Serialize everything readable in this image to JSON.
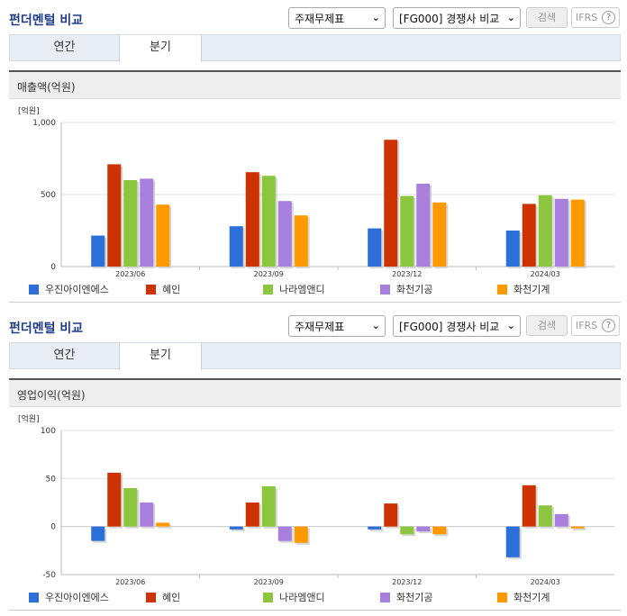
{
  "panels": [
    {
      "title": "펀더멘털 비교",
      "select1": "주재무제표",
      "select2": "[FG000] 경쟁사 비교",
      "search_label": "검색",
      "ifrs_label": "IFRS",
      "help_label": "?",
      "tabs": [
        "연간",
        "분기"
      ],
      "active_tab": "분기",
      "section_title": "매출액(억원)"
    },
    {
      "title": "펀더멘털 비교",
      "select1": "주재무제표",
      "select2": "[FG000] 경쟁사 비교",
      "search_label": "검색",
      "ifrs_label": "IFRS",
      "help_label": "?",
      "tabs": [
        "연간",
        "분기"
      ],
      "active_tab": "분기",
      "section_title": "영업이익(억원)"
    }
  ],
  "chart_data": [
    {
      "type": "bar",
      "title": "매출액(억원)",
      "ylabel": "[억원]",
      "ylim": [
        0,
        1000
      ],
      "yticks": [
        0,
        500,
        1000
      ],
      "ytick_labels": [
        "0",
        "500",
        "1,000"
      ],
      "categories": [
        "2023/06",
        "2023/09",
        "2023/12",
        "2024/03"
      ],
      "grid": true,
      "legend": "bottom",
      "series": [
        {
          "name": "우진아이엔에스",
          "color": "#2d6fd9",
          "values": [
            215,
            280,
            265,
            250
          ]
        },
        {
          "name": "혜인",
          "color": "#cc3300",
          "values": [
            710,
            655,
            880,
            435
          ]
        },
        {
          "name": "나라엠앤디",
          "color": "#8cc63f",
          "values": [
            600,
            630,
            490,
            495
          ]
        },
        {
          "name": "화천기공",
          "color": "#a97fde",
          "values": [
            610,
            455,
            575,
            470
          ]
        },
        {
          "name": "화천기계",
          "color": "#ff9900",
          "values": [
            430,
            355,
            445,
            465
          ]
        }
      ]
    },
    {
      "type": "bar",
      "title": "영업이익(억원)",
      "ylabel": "[억원]",
      "ylim": [
        -50,
        100
      ],
      "yticks": [
        -50,
        0,
        50,
        100
      ],
      "ytick_labels": [
        "-50",
        "0",
        "50",
        "100"
      ],
      "categories": [
        "2023/06",
        "2023/09",
        "2023/12",
        "2024/03"
      ],
      "grid": true,
      "legend": "bottom",
      "series": [
        {
          "name": "우진아이엔에스",
          "color": "#2d6fd9",
          "values": [
            -15,
            -3,
            -3,
            -32
          ]
        },
        {
          "name": "혜인",
          "color": "#cc3300",
          "values": [
            56,
            25,
            24,
            43
          ]
        },
        {
          "name": "나라엠앤디",
          "color": "#8cc63f",
          "values": [
            40,
            42,
            -8,
            22
          ]
        },
        {
          "name": "화천기공",
          "color": "#a97fde",
          "values": [
            25,
            -15,
            -5,
            13
          ]
        },
        {
          "name": "화천기계",
          "color": "#ff9900",
          "values": [
            4,
            -17,
            -8,
            -2
          ]
        }
      ]
    }
  ]
}
